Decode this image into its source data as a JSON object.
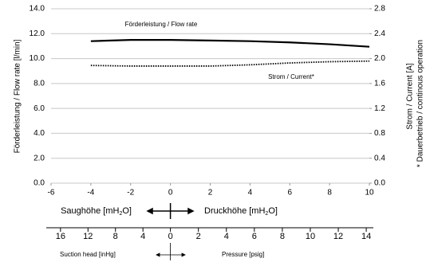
{
  "chart_data": {
    "type": "line",
    "y_label": "Förderleistung / Flow rate [l/min]",
    "y2_label": "Strom / Current [A]",
    "y2_note": "* Dauerbetrieb / continous operation",
    "x": [
      -4,
      -2,
      0,
      2,
      4,
      6,
      8,
      10
    ],
    "series": [
      {
        "name": "Förderleistung / Flow rate",
        "color": "#000000",
        "values": [
          11.4,
          11.5,
          11.5,
          11.45,
          11.4,
          11.3,
          11.15,
          10.95
        ]
      },
      {
        "name": "Strom / Current*",
        "color": "#000000",
        "axis": "y2",
        "dashed": true,
        "values": [
          1.89,
          1.88,
          1.88,
          1.88,
          1.9,
          1.93,
          1.95,
          1.96
        ]
      }
    ],
    "xlim": [
      -6,
      10
    ],
    "xticks": [
      -6,
      -4,
      -2,
      0,
      2,
      4,
      6,
      8,
      10
    ],
    "ylim": [
      0,
      14
    ],
    "yticks": [
      {
        "value": 0,
        "label": "0.0"
      },
      {
        "value": 2,
        "label": "2.0"
      },
      {
        "value": 4,
        "label": "4.0"
      },
      {
        "value": 6,
        "label": "6.0"
      },
      {
        "value": 8,
        "label": "8.0"
      },
      {
        "value": 10,
        "label": "10.0"
      },
      {
        "value": 12,
        "label": "12.0"
      },
      {
        "value": 14,
        "label": "14.0"
      }
    ],
    "y2lim": [
      0,
      2.8
    ],
    "y2ticks": [
      {
        "value": 0,
        "label": "0.0"
      },
      0.4,
      0.8,
      1.2,
      1.6,
      {
        "value": 2,
        "label": "2.0"
      },
      2.4,
      2.8
    ],
    "grid": true,
    "secondary_axis": {
      "suction_label_parts": [
        "Saughöhe [mH",
        "2",
        "O]"
      ],
      "pressure_label_parts": [
        "Druckhöhe [mH",
        "2",
        "O]"
      ],
      "suction_ticks": [
        16,
        12,
        8,
        4
      ],
      "pressure_ticks": [
        0,
        2,
        4,
        6,
        8,
        10,
        12,
        14
      ],
      "suction_unit": "Suction head [inHg]",
      "pressure_unit": "Pressure [psig]"
    }
  }
}
